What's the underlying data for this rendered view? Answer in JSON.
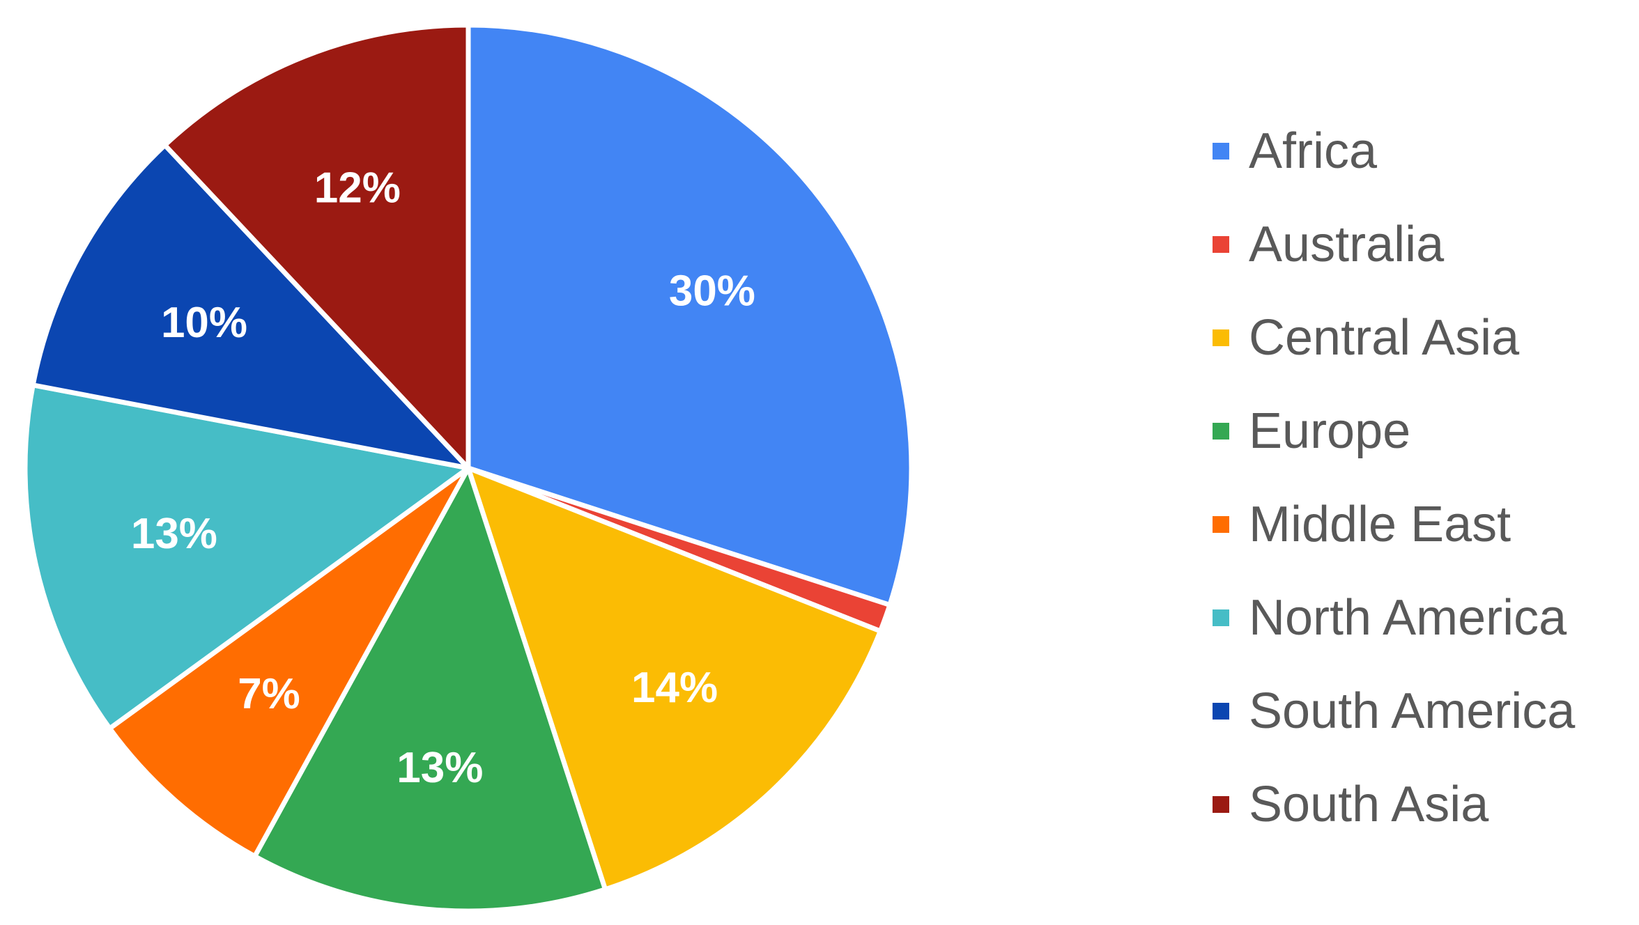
{
  "chart_data": {
    "type": "pie",
    "categories": [
      "Africa",
      "Australia",
      "Central Asia",
      "Europe",
      "Middle East",
      "North America",
      "South America",
      "South Asia"
    ],
    "values": [
      30,
      1,
      14,
      13,
      7,
      13,
      10,
      12
    ],
    "data_labels": [
      "30%",
      "",
      "14%",
      "13%",
      "7%",
      "13%",
      "10%",
      "12%"
    ],
    "colors": [
      "#4285f4",
      "#ea4335",
      "#fbbc04",
      "#34a853",
      "#ff6d01",
      "#46bdc6",
      "#0b46b1",
      "#9b1a12"
    ],
    "start_angle_deg": 0,
    "direction": "clockwise",
    "legend_position": "right",
    "title": "",
    "slice_separator_color": "#ffffff"
  }
}
